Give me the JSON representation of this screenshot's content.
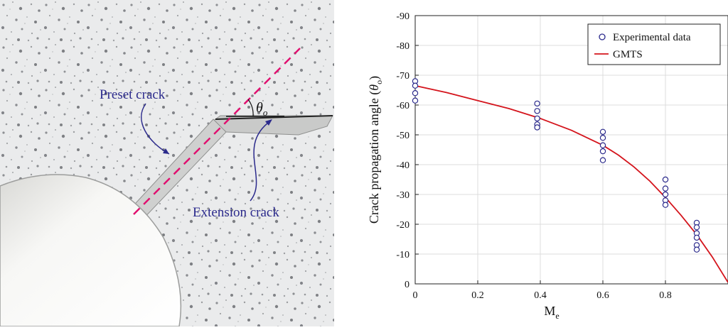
{
  "photo": {
    "label_preset": "Preset crack",
    "label_extension": "Extension crack",
    "angle_symbol": "θ",
    "angle_subscript": "o",
    "colors": {
      "crack_line": "#e0106f",
      "annotation": "#2b2a8c",
      "specimen_bg": "#e9eaeb",
      "hole": "#f5f5f3"
    }
  },
  "chart_data": {
    "type": "scatter",
    "xlabel_main": "M",
    "xlabel_sub": "e",
    "ylabel_main": "Crack propagation angle (",
    "ylabel_symbol": "θ",
    "ylabel_sub": "o",
    "ylabel_close": ")",
    "xlim": [
      0,
      1
    ],
    "ylim": [
      0,
      -90
    ],
    "x_ticks": [
      "0",
      "0.2",
      "0.4",
      "0.6",
      "0.8"
    ],
    "y_ticks": [
      "0",
      "-10",
      "-20",
      "-30",
      "-40",
      "-50",
      "-60",
      "-70",
      "-80",
      "-90"
    ],
    "grid": true,
    "legend_position": "top-right",
    "series": [
      {
        "name": "Experimental data",
        "kind": "scatter",
        "color": "#2b2a8c",
        "points": [
          {
            "x": 0,
            "y": -68
          },
          {
            "x": 0,
            "y": -66.5
          },
          {
            "x": 0,
            "y": -64
          },
          {
            "x": 0,
            "y": -61.5
          },
          {
            "x": 0.39,
            "y": -60.5
          },
          {
            "x": 0.39,
            "y": -58
          },
          {
            "x": 0.39,
            "y": -55.5
          },
          {
            "x": 0.39,
            "y": -53.5
          },
          {
            "x": 0.39,
            "y": -52.5
          },
          {
            "x": 0.6,
            "y": -51
          },
          {
            "x": 0.6,
            "y": -49
          },
          {
            "x": 0.6,
            "y": -46.5
          },
          {
            "x": 0.6,
            "y": -44.5
          },
          {
            "x": 0.6,
            "y": -41.5
          },
          {
            "x": 0.8,
            "y": -35
          },
          {
            "x": 0.8,
            "y": -32
          },
          {
            "x": 0.8,
            "y": -30
          },
          {
            "x": 0.8,
            "y": -28
          },
          {
            "x": 0.8,
            "y": -26.5
          },
          {
            "x": 0.9,
            "y": -20.5
          },
          {
            "x": 0.9,
            "y": -19
          },
          {
            "x": 0.9,
            "y": -17
          },
          {
            "x": 0.9,
            "y": -15.5
          },
          {
            "x": 0.9,
            "y": -13
          },
          {
            "x": 0.9,
            "y": -11.5
          }
        ]
      },
      {
        "name": "GMTS",
        "kind": "line",
        "color": "#d4141c",
        "points": [
          {
            "x": 0,
            "y": -66.5
          },
          {
            "x": 0.1,
            "y": -64.2
          },
          {
            "x": 0.2,
            "y": -61.5
          },
          {
            "x": 0.3,
            "y": -58.8
          },
          {
            "x": 0.4,
            "y": -55.5
          },
          {
            "x": 0.5,
            "y": -51.5
          },
          {
            "x": 0.6,
            "y": -46.5
          },
          {
            "x": 0.65,
            "y": -43.2
          },
          {
            "x": 0.7,
            "y": -39.2
          },
          {
            "x": 0.75,
            "y": -34.5
          },
          {
            "x": 0.8,
            "y": -29
          },
          {
            "x": 0.85,
            "y": -23
          },
          {
            "x": 0.9,
            "y": -16.5
          },
          {
            "x": 0.95,
            "y": -9
          },
          {
            "x": 1.0,
            "y": -0.5
          }
        ]
      }
    ]
  }
}
